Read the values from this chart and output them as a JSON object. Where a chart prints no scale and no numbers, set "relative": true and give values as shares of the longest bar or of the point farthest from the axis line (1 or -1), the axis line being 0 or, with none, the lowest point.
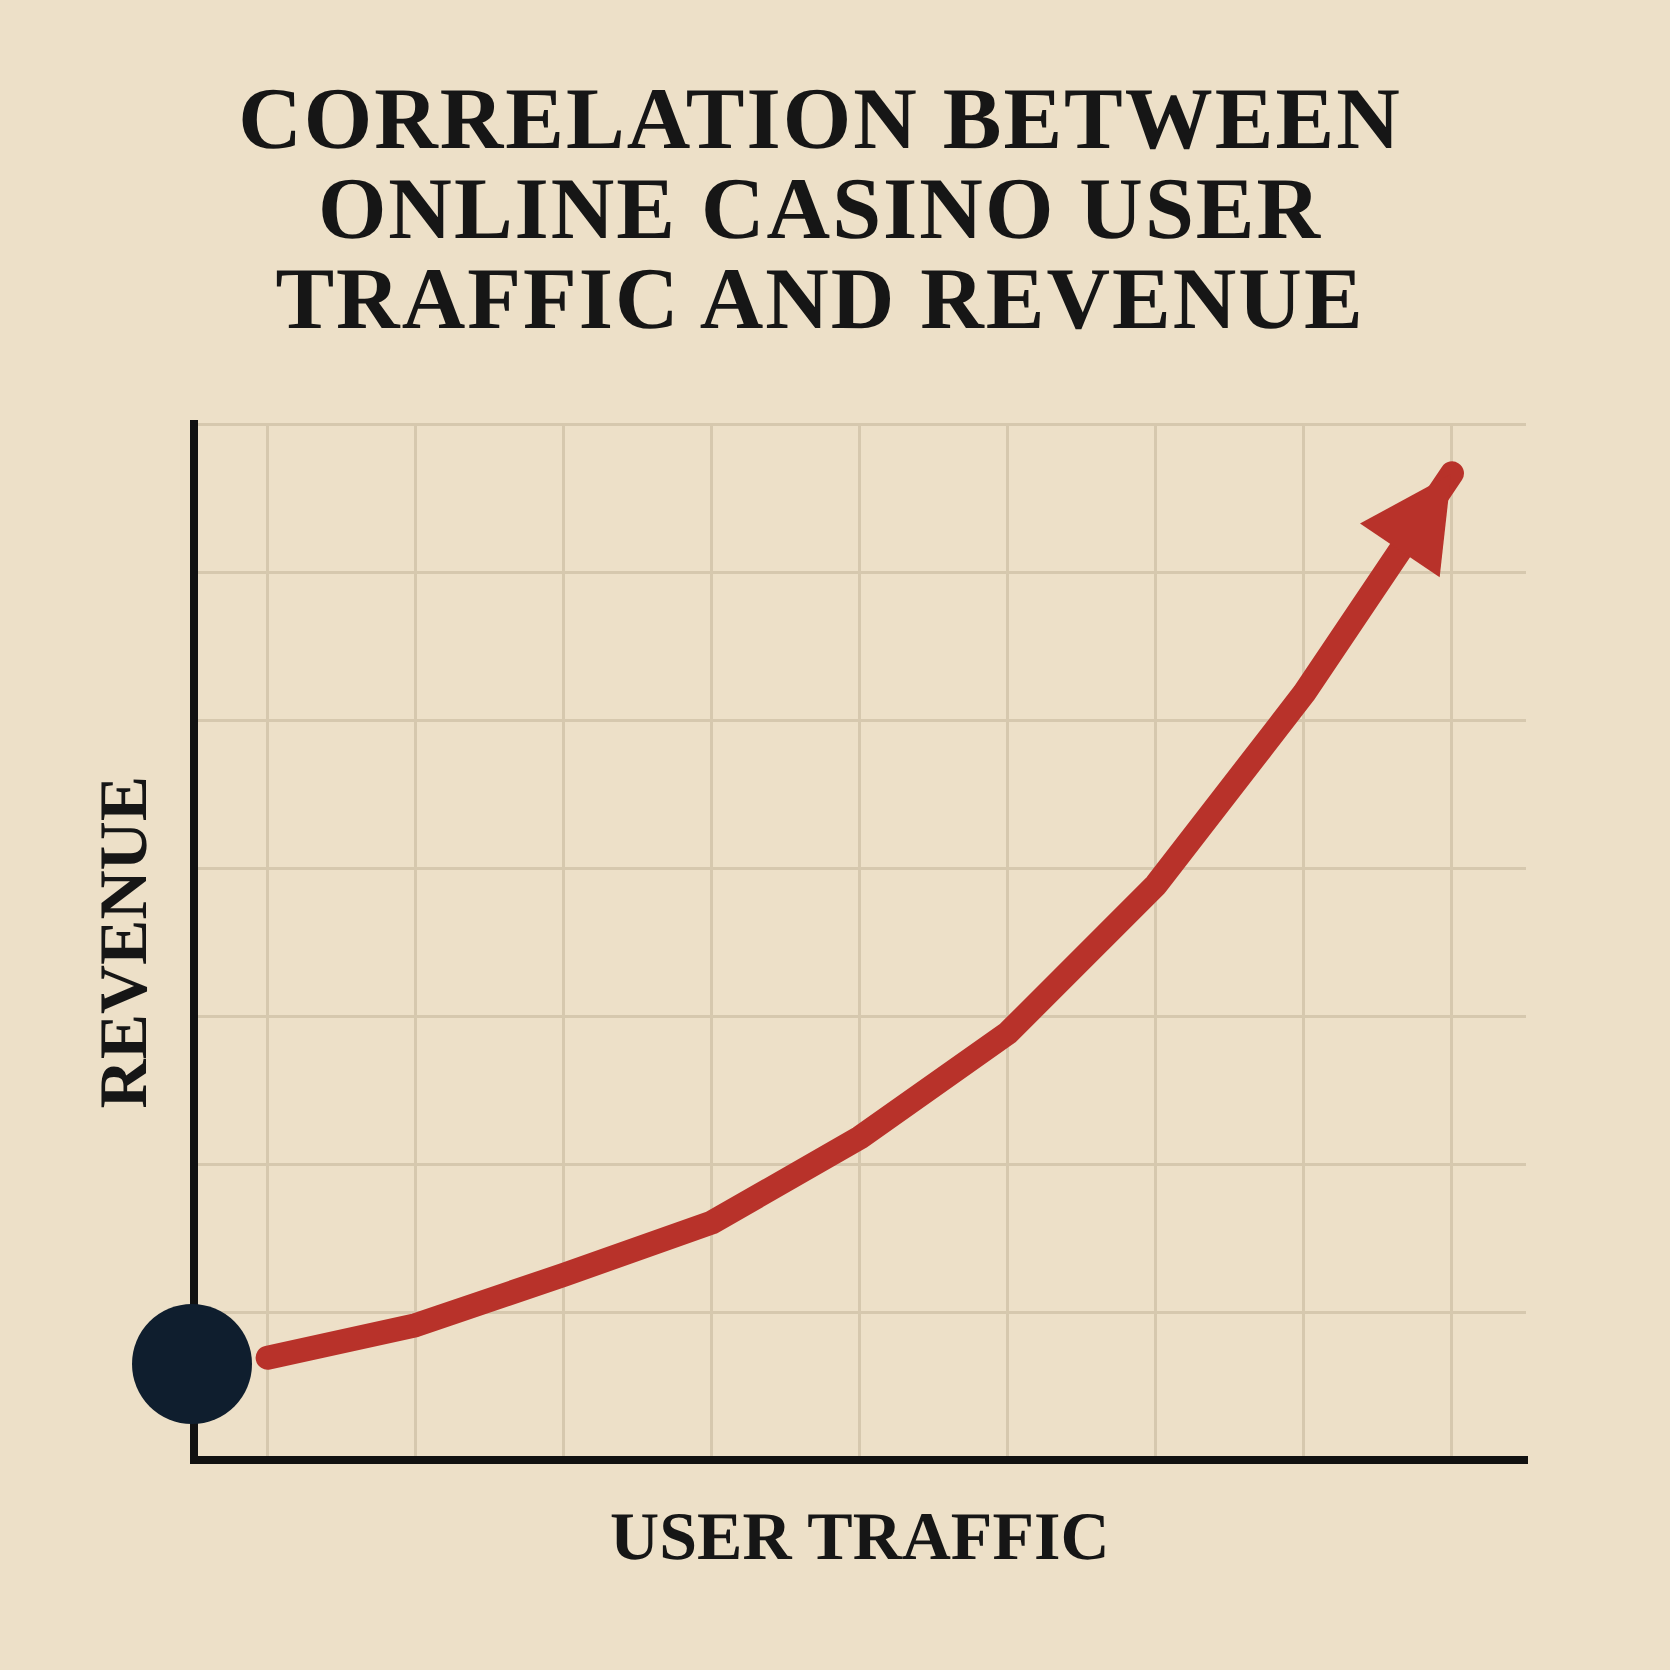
{
  "chart_data": {
    "type": "line",
    "title": "CORRELATION BETWEEN ONLINE CASINO USER TRAFFIC AND REVENUE",
    "xlabel": "USER TRAFFIC",
    "ylabel": "REVENUE",
    "relative": true,
    "grid": true,
    "line_style": "solid",
    "categories": [
      null,
      null,
      null,
      null,
      null,
      null,
      null,
      null,
      null
    ],
    "series": [
      {
        "color": "#b8322a",
        "values": [
          0.104,
          0.137,
          0.188,
          0.241,
          0.327,
          0.433,
          0.583,
          0.777,
          1.0
        ]
      }
    ]
  }
}
